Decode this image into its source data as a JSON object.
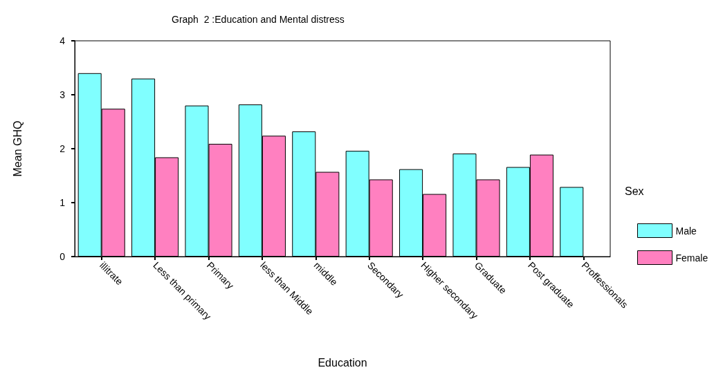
{
  "chart_data": {
    "type": "bar",
    "title": "Graph  2 :Education and Mental distress",
    "xlabel": "Education",
    "ylabel": "Mean GHQ",
    "legend_title": "Sex",
    "categories": [
      "illitrate",
      "Less than primary",
      "Primary",
      "less than Middle",
      "middle",
      "Secondary",
      "Higher secondary",
      "Graduate",
      "Post graduate",
      "Proffessionals"
    ],
    "series": [
      {
        "name": "Male",
        "color": "#80ffff",
        "values": [
          3.4,
          3.3,
          2.8,
          2.82,
          2.32,
          1.96,
          1.62,
          1.91,
          1.66,
          1.29
        ]
      },
      {
        "name": "Female",
        "color": "#ff80c0",
        "values": [
          2.74,
          1.84,
          2.09,
          2.24,
          1.57,
          1.43,
          1.16,
          1.43,
          1.89,
          null
        ]
      }
    ],
    "ylim": [
      0,
      4
    ],
    "yticks": [
      0,
      1,
      2,
      3,
      4
    ],
    "grid": false,
    "legend": "right"
  }
}
